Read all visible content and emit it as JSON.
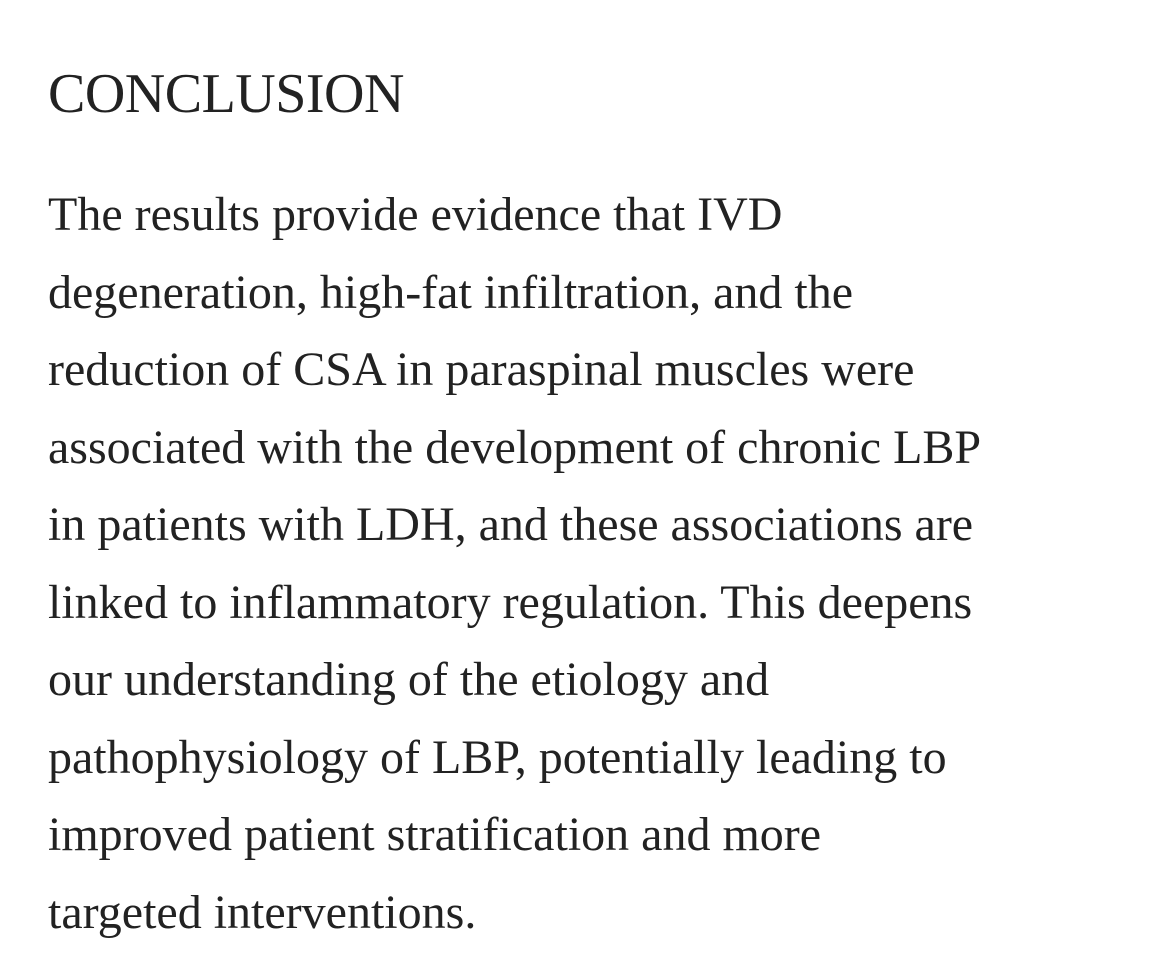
{
  "section": {
    "heading": "CONCLUSION",
    "lines": [
      "The results provide evidence that IVD",
      "degeneration, high-fat infiltration, and the",
      "reduction of CSA in paraspinal muscles were",
      "associated with the development of chronic LBP",
      "in patients with LDH, and these associations are",
      "linked to inflammatory regulation. This deepens",
      "our understanding of the etiology and",
      "pathophysiology of LBP, potentially leading to",
      "improved patient stratification and more",
      "targeted interventions."
    ]
  }
}
